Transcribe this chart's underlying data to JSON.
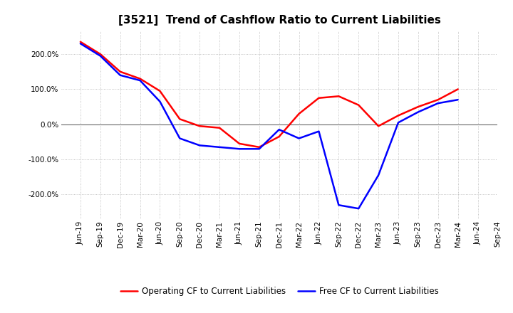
{
  "title": "[3521]  Trend of Cashflow Ratio to Current Liabilities",
  "x_labels": [
    "Jun-19",
    "Sep-19",
    "Dec-19",
    "Mar-20",
    "Jun-20",
    "Sep-20",
    "Dec-20",
    "Mar-21",
    "Jun-21",
    "Sep-21",
    "Dec-21",
    "Mar-22",
    "Jun-22",
    "Sep-22",
    "Dec-22",
    "Mar-23",
    "Jun-23",
    "Sep-23",
    "Dec-23",
    "Mar-24",
    "Jun-24",
    "Sep-24"
  ],
  "operating_cf": [
    235,
    200,
    150,
    130,
    95,
    15,
    -5,
    -10,
    -55,
    -65,
    -35,
    30,
    75,
    80,
    55,
    -5,
    25,
    50,
    70,
    100,
    null,
    null
  ],
  "free_cf": [
    230,
    195,
    140,
    125,
    65,
    -40,
    -60,
    -65,
    -70,
    -70,
    -15,
    -40,
    -20,
    -230,
    -240,
    -145,
    5,
    35,
    60,
    70,
    null,
    null
  ],
  "operating_color": "#ff0000",
  "free_color": "#0000ff",
  "ylim": [
    -270,
    265
  ],
  "yticks": [
    -200,
    -100,
    0,
    100,
    200
  ],
  "background_color": "#ffffff",
  "grid_color": "#aaaaaa",
  "title_fontsize": 11,
  "tick_fontsize": 7.5,
  "legend_fontsize": 8.5,
  "line_width": 1.8,
  "legend_labels": [
    "Operating CF to Current Liabilities",
    "Free CF to Current Liabilities"
  ]
}
